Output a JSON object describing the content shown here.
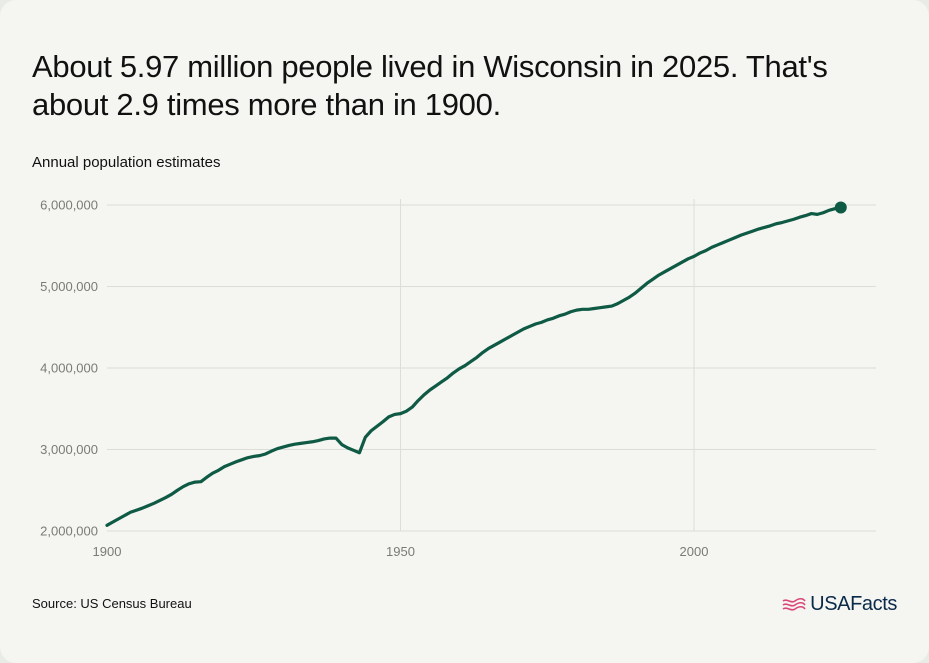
{
  "headline": "About 5.97 million people lived in Wisconsin in 2025. That's about 2.9 times more than in 1900.",
  "subtitle": "Annual population estimates",
  "source": "Source: US Census Bureau",
  "brand": {
    "name": "USAFacts",
    "icon": "usafacts-flag-icon"
  },
  "colors": {
    "line": "#0e5a44",
    "grid": "#dcdcd8",
    "text": "#111111",
    "tick": "#7a7a76"
  },
  "chart_data": {
    "type": "line",
    "title": "Annual population estimates",
    "xlabel": "",
    "ylabel": "",
    "xlim": [
      1900,
      2031
    ],
    "ylim": [
      2000000,
      6000000
    ],
    "x_ticks": [
      1900,
      1950,
      2000
    ],
    "x_tick_labels": [
      "1900",
      "1950",
      "2000"
    ],
    "y_ticks": [
      2000000,
      3000000,
      4000000,
      5000000,
      6000000
    ],
    "y_tick_labels": [
      "2,000,000",
      "3,000,000",
      "4,000,000",
      "5,000,000",
      "6,000,000"
    ],
    "grid": true,
    "highlight_point": {
      "x": 2025,
      "y": 5970000
    },
    "series": [
      {
        "x": [
          1900,
          1901,
          1902,
          1903,
          1904,
          1905,
          1906,
          1907,
          1908,
          1909,
          1910,
          1911,
          1912,
          1913,
          1914,
          1915,
          1916,
          1917,
          1918,
          1919,
          1920,
          1921,
          1922,
          1923,
          1924,
          1925,
          1926,
          1927,
          1928,
          1929,
          1930,
          1931,
          1932,
          1933,
          1934,
          1935,
          1936,
          1937,
          1938,
          1939,
          1940,
          1941,
          1942,
          1943,
          1944,
          1945,
          1946,
          1947,
          1948,
          1949,
          1950,
          1951,
          1952,
          1953,
          1954,
          1955,
          1956,
          1957,
          1958,
          1959,
          1960,
          1961,
          1962,
          1963,
          1964,
          1965,
          1966,
          1967,
          1968,
          1969,
          1970,
          1971,
          1972,
          1973,
          1974,
          1975,
          1976,
          1977,
          1978,
          1979,
          1980,
          1981,
          1982,
          1983,
          1984,
          1985,
          1986,
          1987,
          1988,
          1989,
          1990,
          1991,
          1992,
          1993,
          1994,
          1995,
          1996,
          1997,
          1998,
          1999,
          2000,
          2001,
          2002,
          2003,
          2004,
          2005,
          2006,
          2007,
          2008,
          2009,
          2010,
          2011,
          2012,
          2013,
          2014,
          2015,
          2016,
          2017,
          2018,
          2019,
          2020,
          2021,
          2022,
          2023,
          2024,
          2025
        ],
        "values": [
          2070000,
          2110000,
          2150000,
          2190000,
          2230000,
          2255000,
          2280000,
          2310000,
          2340000,
          2375000,
          2410000,
          2450000,
          2500000,
          2545000,
          2580000,
          2600000,
          2605000,
          2660000,
          2710000,
          2745000,
          2790000,
          2820000,
          2850000,
          2875000,
          2900000,
          2915000,
          2925000,
          2945000,
          2980000,
          3010000,
          3030000,
          3050000,
          3065000,
          3075000,
          3085000,
          3095000,
          3110000,
          3130000,
          3140000,
          3140000,
          3060000,
          3020000,
          2990000,
          2960000,
          3150000,
          3230000,
          3285000,
          3340000,
          3400000,
          3430000,
          3440000,
          3470000,
          3520000,
          3600000,
          3670000,
          3730000,
          3780000,
          3830000,
          3880000,
          3940000,
          3990000,
          4030000,
          4080000,
          4130000,
          4190000,
          4240000,
          4280000,
          4320000,
          4360000,
          4400000,
          4440000,
          4480000,
          4510000,
          4540000,
          4560000,
          4590000,
          4610000,
          4640000,
          4660000,
          4690000,
          4710000,
          4720000,
          4720000,
          4730000,
          4740000,
          4750000,
          4760000,
          4790000,
          4830000,
          4870000,
          4920000,
          4980000,
          5040000,
          5090000,
          5140000,
          5180000,
          5220000,
          5260000,
          5300000,
          5340000,
          5370000,
          5410000,
          5440000,
          5480000,
          5510000,
          5540000,
          5570000,
          5600000,
          5630000,
          5655000,
          5680000,
          5705000,
          5725000,
          5745000,
          5770000,
          5785000,
          5805000,
          5825000,
          5850000,
          5870000,
          5895000,
          5885000,
          5905000,
          5935000,
          5955000,
          5970000
        ]
      }
    ]
  }
}
